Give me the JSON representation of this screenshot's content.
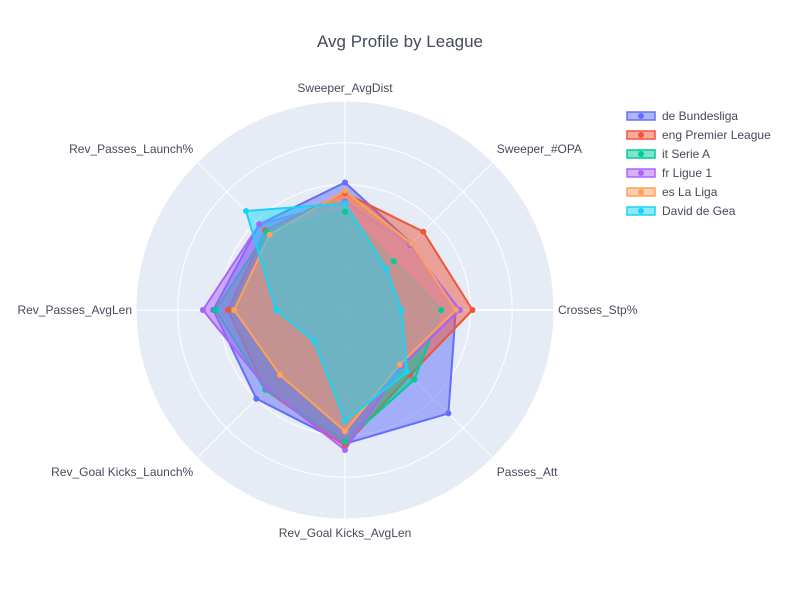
{
  "chart_data": {
    "type": "radar",
    "title": "Avg Profile by League",
    "axes": [
      "Sweeper_AvgDist",
      "Sweeper_#OPA",
      "Crosses_Stp%",
      "Passes_Att",
      "Rev_Goal Kicks_AvgLen",
      "Rev_Goal Kicks_Launch%",
      "Rev_Passes_AvgLen",
      "Rev_Passes_Launch%"
    ],
    "rmax": 1.0,
    "rings": [
      0.2,
      0.4,
      0.6,
      0.8,
      1.0
    ],
    "grid": true,
    "legend_position": "top-right",
    "series": [
      {
        "name": "de Bundesliga",
        "color": "#636efa",
        "values": [
          0.61,
          0.45,
          0.53,
          0.7,
          0.64,
          0.6,
          0.63,
          0.58
        ]
      },
      {
        "name": "eng Premier League",
        "color": "#ef553b",
        "values": [
          0.56,
          0.53,
          0.61,
          0.44,
          0.65,
          0.54,
          0.56,
          0.54
        ]
      },
      {
        "name": "it Serie A",
        "color": "#00cc96",
        "values": [
          0.47,
          0.33,
          0.46,
          0.47,
          0.63,
          0.54,
          0.62,
          0.53
        ]
      },
      {
        "name": "fr Ligue 1",
        "color": "#ab63fa",
        "values": [
          0.52,
          0.44,
          0.55,
          0.38,
          0.67,
          0.53,
          0.68,
          0.58
        ]
      },
      {
        "name": "es La Liga",
        "color": "#ffa15a",
        "values": [
          0.57,
          0.45,
          0.53,
          0.37,
          0.58,
          0.44,
          0.53,
          0.51
        ]
      },
      {
        "name": "David de Gea",
        "color": "#19d3f3",
        "values": [
          0.51,
          0.28,
          0.27,
          0.42,
          0.53,
          0.21,
          0.33,
          0.67
        ]
      }
    ]
  }
}
